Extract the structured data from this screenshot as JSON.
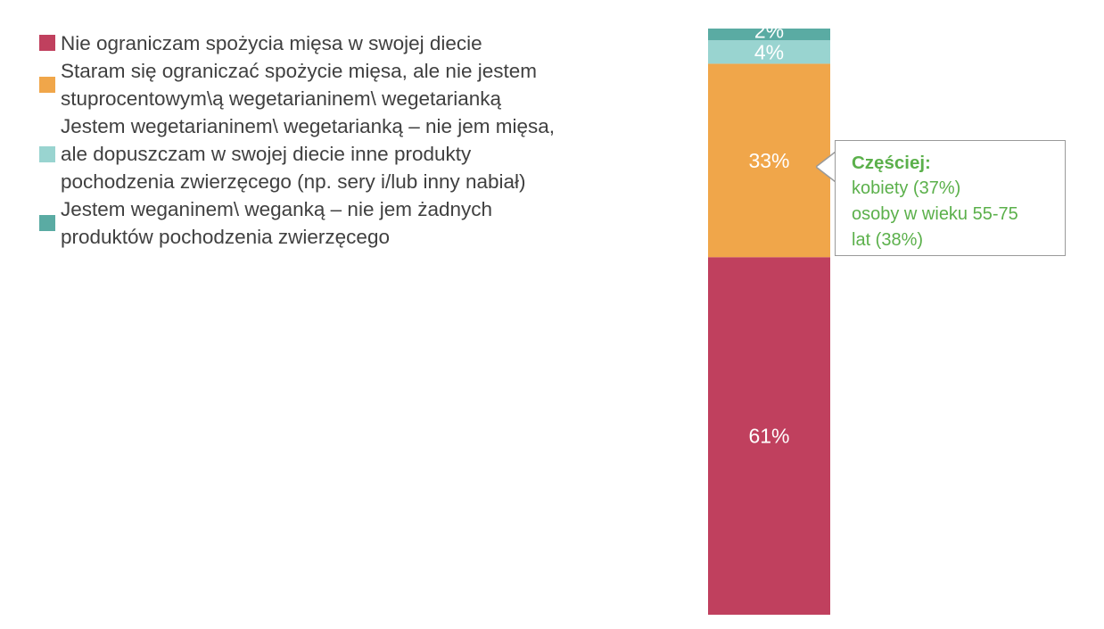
{
  "chart_data": {
    "type": "bar",
    "stacked": true,
    "orientation": "vertical",
    "categories": [
      ""
    ],
    "series": [
      {
        "name": "Nie ograniczam spożycia mięsa w swojej diecie",
        "values": [
          61
        ],
        "label": "61%",
        "color": "#c0405e"
      },
      {
        "name": "Staram się ograniczać spożycie mięsa, ale nie jestem stuprocentowym\\ą wegetarianinem\\ wegetarianką",
        "values": [
          33
        ],
        "label": "33%",
        "color": "#f0a64a"
      },
      {
        "name": "Jestem wegetarianinem\\ wegetarianką – nie jem mięsa, ale dopuszczam w swojej diecie inne produkty pochodzenia zwierzęcego (np. sery i/lub inny nabiał)",
        "values": [
          4
        ],
        "label": "4%",
        "color": "#99d4d0"
      },
      {
        "name": "Jestem weganinem\\ weganką – nie jem żadnych produktów pochodzenia zwierzęcego",
        "values": [
          2
        ],
        "label": "2%",
        "color": "#5aaba3"
      }
    ],
    "ylim": [
      0,
      100
    ],
    "legend_position": "top-left",
    "grid": false
  },
  "legend": [
    {
      "swatch_color": "#c0405e",
      "lines": [
        "Nie ograniczam spożycia mięsa w swojej diecie"
      ]
    },
    {
      "swatch_color": "#f0a64a",
      "lines": [
        "Staram się ograniczać spożycie mięsa, ale nie jestem",
        "stuprocentowym\\ą wegetarianinem\\ wegetarianką"
      ]
    },
    {
      "swatch_color": "#99d4d0",
      "lines": [
        "Jestem wegetarianinem\\ wegetarianką – nie jem mięsa,",
        "ale dopuszczam w swojej diecie inne produkty",
        "pochodzenia zwierzęcego (np. sery i/lub inny nabiał)"
      ]
    },
    {
      "swatch_color": "#5aaba3",
      "lines": [
        "Jestem weganinem\\ weganką – nie jem żadnych",
        "produktów pochodzenia zwierzęcego"
      ]
    }
  ],
  "callout": {
    "title": "Częściej:",
    "lines": [
      "kobiety (37%)",
      "osoby w wieku 55-75",
      "lat (38%)"
    ],
    "text_color": "#5bb04b",
    "border_color": "#9a9a9a"
  }
}
